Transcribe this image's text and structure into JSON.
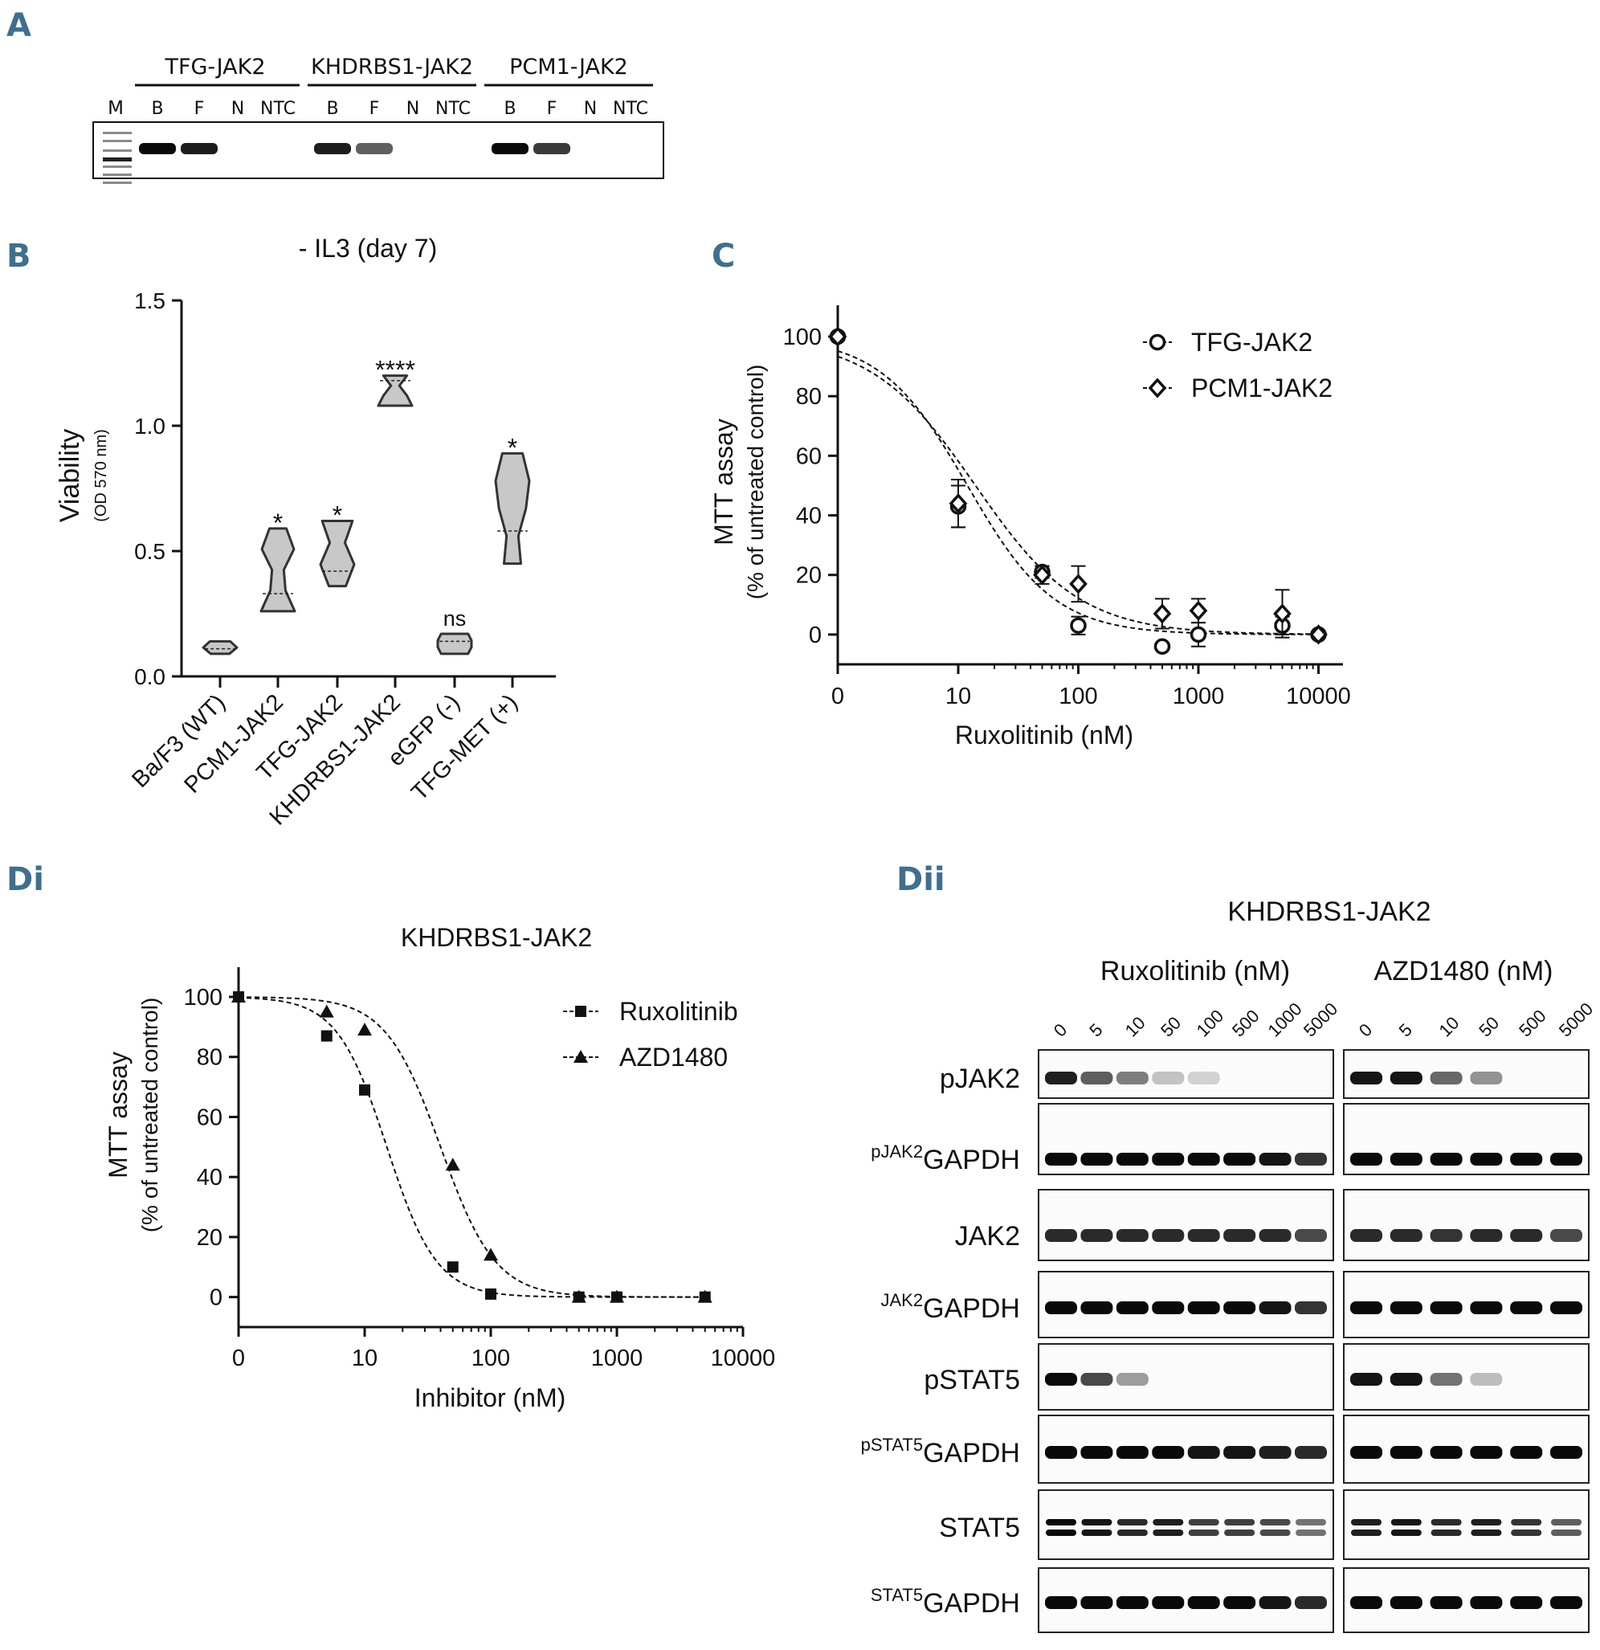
{
  "panels": {
    "A": {
      "letter": "A",
      "groups": [
        "TFG-JAK2",
        "KHDRBS1-JAK2",
        "PCM1-JAK2"
      ],
      "marker_label": "M",
      "lanes": [
        "B",
        "F",
        "N",
        "NTC"
      ],
      "band_intensity": [
        [
          1.0,
          0.9,
          0,
          0
        ],
        [
          0.9,
          0.55,
          0,
          0
        ],
        [
          1.0,
          0.75,
          0,
          0
        ]
      ]
    },
    "B": {
      "letter": "B",
      "title": "- IL3 (day 7)",
      "ylabel": "Viability",
      "ylabel_sub": "(OD 570 nm)",
      "yticks": [
        "0.0",
        "0.5",
        "1.0",
        "1.5"
      ],
      "categories": [
        "Ba/F3 (WT)",
        "PCM1-JAK2",
        "TFG-JAK2",
        "KHDRBS1-JAK2",
        "eGFP (-)",
        "TFG-MET (+)"
      ],
      "significance": [
        "",
        "*",
        "*",
        "****",
        "ns",
        "*"
      ]
    },
    "C": {
      "letter": "C",
      "ylabel": "MTT assay",
      "ylabel_sub": "(% of untreated control)",
      "xlabel": "Ruxolitinib (nM)",
      "xticks": [
        "0",
        "10",
        "100",
        "1000",
        "10000"
      ],
      "yticks": [
        "0",
        "20",
        "40",
        "60",
        "80",
        "100"
      ],
      "legend": [
        "TFG-JAK2",
        "PCM1-JAK2"
      ]
    },
    "Di": {
      "letter": "Di",
      "title": "KHDRBS1-JAK2",
      "ylabel": "MTT assay",
      "ylabel_sub": "(% of untreated control)",
      "xlabel": "Inhibitor (nM)",
      "xticks": [
        "0",
        "10",
        "100",
        "1000",
        "10000"
      ],
      "yticks": [
        "0",
        "20",
        "40",
        "60",
        "80",
        "100"
      ],
      "legend": [
        "Ruxolitinib",
        "AZD1480"
      ]
    },
    "Dii": {
      "letter": "Dii",
      "title": "KHDRBS1-JAK2",
      "group_ruxolitinib": "Ruxolitinib (nM)",
      "group_azd1480": "AZD1480 (nM)",
      "ruxolitinib_doses": [
        "0",
        "5",
        "10",
        "50",
        "100",
        "500",
        "1000",
        "5000"
      ],
      "azd1480_doses": [
        "0",
        "5",
        "10",
        "50",
        "500",
        "5000"
      ],
      "rows": [
        {
          "sup": "",
          "label": "pJAK2",
          "rux": [
            0.9,
            0.6,
            0.45,
            0.12,
            0.05,
            0,
            0,
            0
          ],
          "azd": [
            0.95,
            0.95,
            0.55,
            0.35,
            0,
            0
          ]
        },
        {
          "sup": "pJAK2",
          "label": "GAPDH",
          "rux": [
            1,
            1,
            1,
            1,
            1,
            1,
            0.95,
            0.8
          ],
          "azd": [
            1,
            1,
            1,
            1,
            1,
            1
          ]
        },
        {
          "sup": "",
          "label": "JAK2",
          "rux": [
            0.85,
            0.85,
            0.85,
            0.85,
            0.85,
            0.85,
            0.85,
            0.7
          ],
          "azd": [
            0.85,
            0.85,
            0.8,
            0.85,
            0.85,
            0.7
          ]
        },
        {
          "sup": "JAK2",
          "label": "GAPDH",
          "rux": [
            1,
            1,
            1,
            1,
            1,
            1,
            0.95,
            0.8
          ],
          "azd": [
            1,
            1,
            1,
            1,
            1,
            1
          ]
        },
        {
          "sup": "",
          "label": "pSTAT5",
          "rux": [
            1,
            0.7,
            0.3,
            0,
            0,
            0,
            0,
            0
          ],
          "azd": [
            0.95,
            0.95,
            0.5,
            0.15,
            0,
            0
          ]
        },
        {
          "sup": "pSTAT5",
          "label": "GAPDH",
          "rux": [
            1,
            1,
            1,
            1,
            0.95,
            0.95,
            0.9,
            0.85
          ],
          "azd": [
            1,
            1,
            1,
            1,
            1,
            1
          ]
        },
        {
          "sup": "",
          "label": "STAT5",
          "rux": [
            1,
            0.95,
            0.85,
            0.9,
            0.75,
            0.75,
            0.7,
            0.5
          ],
          "azd": [
            0.9,
            0.95,
            0.85,
            0.9,
            0.8,
            0.6
          ]
        },
        {
          "sup": "STAT5",
          "label": "GAPDH",
          "rux": [
            1,
            1,
            1,
            1,
            1,
            1,
            0.95,
            0.85
          ],
          "azd": [
            1,
            1,
            1,
            1,
            1,
            1
          ]
        }
      ]
    }
  },
  "chart_data": [
    {
      "type": "violin",
      "panel": "B",
      "title": "- IL3 (day 7)",
      "ylabel": "Viability (OD 570 nm)",
      "ylim": [
        0,
        1.5
      ],
      "categories": [
        "Ba/F3 (WT)",
        "PCM1-JAK2",
        "TFG-JAK2",
        "KHDRBS1-JAK2",
        "eGFP (-)",
        "TFG-MET (+)"
      ],
      "min": [
        0.09,
        0.26,
        0.36,
        1.08,
        0.09,
        0.45
      ],
      "max": [
        0.14,
        0.59,
        0.62,
        1.2,
        0.17,
        0.89
      ],
      "median": [
        0.11,
        0.33,
        0.42,
        1.18,
        0.14,
        0.58
      ],
      "significance": [
        "",
        "*",
        "*",
        "****",
        "ns",
        "*"
      ]
    },
    {
      "type": "scatter",
      "panel": "C",
      "xlabel": "Ruxolitinib (nM)",
      "ylabel": "MTT assay (% of untreated control)",
      "xscale": "log",
      "ylim": [
        -10,
        110
      ],
      "series": [
        {
          "name": "TFG-JAK2",
          "marker": "circle",
          "x": [
            0,
            10,
            50,
            100,
            500,
            1000,
            5000,
            10000
          ],
          "y": [
            100,
            43,
            21,
            3,
            -4,
            0,
            3,
            0
          ],
          "err": [
            0,
            7,
            2,
            3,
            0,
            4,
            3,
            0
          ]
        },
        {
          "name": "PCM1-JAK2",
          "marker": "diamond",
          "x": [
            0,
            10,
            50,
            100,
            500,
            1000,
            5000,
            10000
          ],
          "y": [
            100,
            44,
            20,
            17,
            7,
            8,
            7,
            0
          ],
          "err": [
            0,
            8,
            3,
            6,
            5,
            4,
            8,
            0
          ]
        }
      ]
    },
    {
      "type": "scatter",
      "panel": "Di",
      "title": "KHDRBS1-JAK2",
      "xlabel": "Inhibitor (nM)",
      "ylabel": "MTT assay (% of untreated control)",
      "xscale": "log",
      "ylim": [
        -10,
        110
      ],
      "series": [
        {
          "name": "Ruxolitinib",
          "marker": "square",
          "x": [
            0,
            5,
            10,
            50,
            100,
            500,
            1000,
            5000
          ],
          "y": [
            100,
            87,
            69,
            10,
            1,
            0,
            0,
            0
          ]
        },
        {
          "name": "AZD1480",
          "marker": "triangle",
          "x": [
            0,
            5,
            10,
            50,
            100,
            500,
            1000,
            5000
          ],
          "y": [
            100,
            95,
            89,
            44,
            14,
            0,
            0,
            0
          ]
        }
      ]
    }
  ]
}
